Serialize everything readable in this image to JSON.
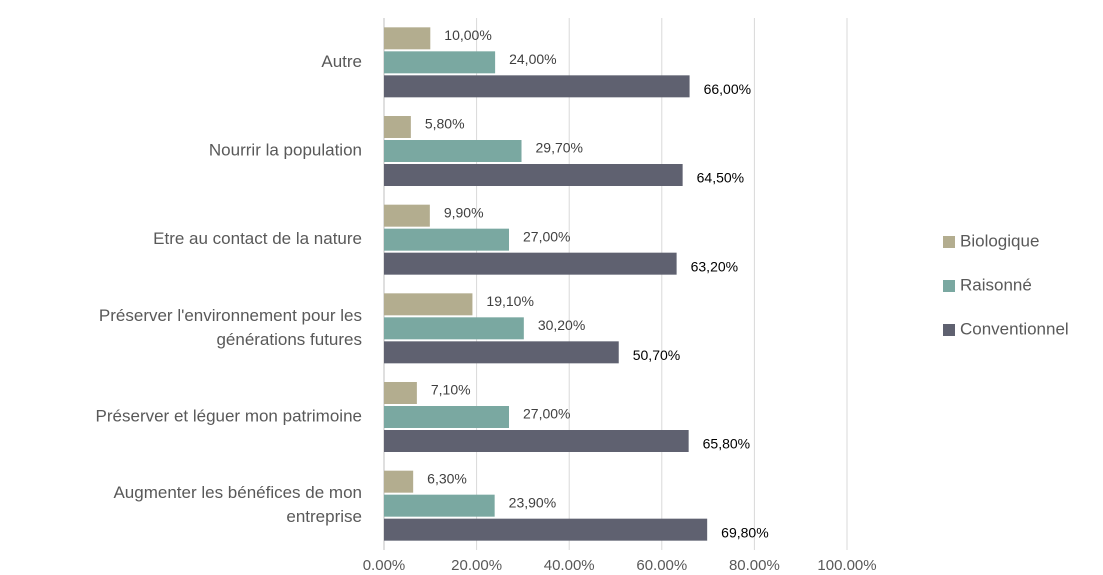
{
  "chart_data": {
    "type": "hbar",
    "categories": [
      [
        "Autre"
      ],
      [
        "Nourrir la population"
      ],
      [
        "Etre au contact de la nature"
      ],
      [
        "Préserver l'environnement pour les",
        "générations futures"
      ],
      [
        "Préserver et léguer mon patrimoine"
      ],
      [
        "Augmenter les bénéfices de mon",
        "entreprise"
      ]
    ],
    "series": [
      {
        "name": "Biologique",
        "color": "#b3ad8f",
        "values": [
          10,
          5.8,
          9.9,
          19.1,
          7.1,
          6.3
        ],
        "value_labels": [
          "10,00%",
          "5,80%",
          "9,90%",
          "19,10%",
          "7,10%",
          "6,30%"
        ]
      },
      {
        "name": "Raisonné",
        "color": "#7aa8a1",
        "values": [
          24,
          29.7,
          27,
          30.2,
          27,
          23.9
        ],
        "value_labels": [
          "24,00%",
          "29,70%",
          "27,00%",
          "30,20%",
          "27,00%",
          "23,90%"
        ]
      },
      {
        "name": "Conventionnel",
        "color": "#5f6170",
        "values": [
          66,
          64.5,
          63.2,
          50.7,
          65.8,
          69.8
        ],
        "value_labels": [
          "66,00%",
          "64,50%",
          "63,20%",
          "50,70%",
          "65,80%",
          "69,80%"
        ]
      }
    ],
    "xlim": [
      0,
      100
    ],
    "xticks": [
      {
        "value": 0,
        "label": "0,00%"
      },
      {
        "value": 20,
        "label": "20,00%"
      },
      {
        "value": 40,
        "label": "40,00%"
      },
      {
        "value": 60,
        "label": "60,00%"
      },
      {
        "value": 80,
        "label": "80,00%"
      },
      {
        "value": 100,
        "label": "100,00%"
      }
    ],
    "grid": true,
    "legend": "right"
  }
}
